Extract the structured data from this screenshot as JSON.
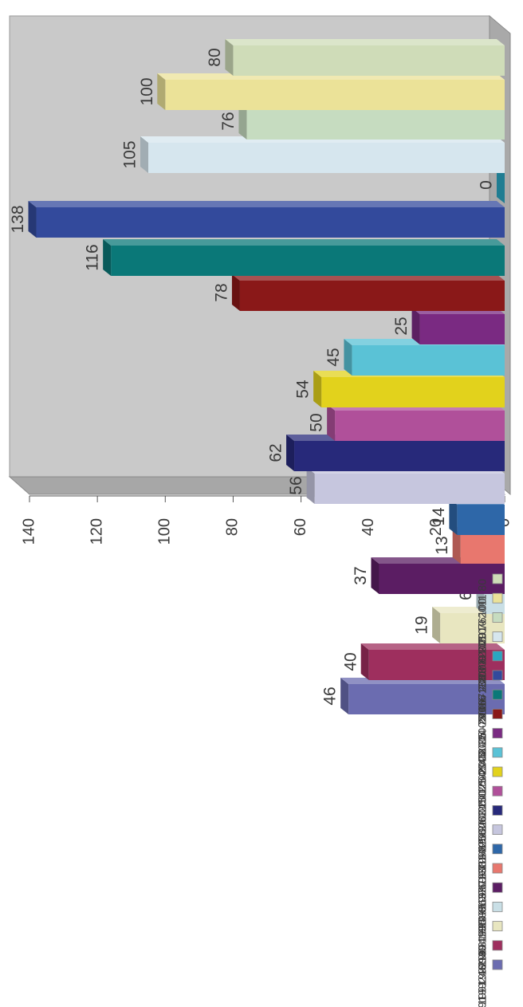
{
  "chart_data": {
    "type": "bar",
    "orientation": "rotated-90",
    "ylim": [
      0,
      140
    ],
    "yticks": [
      0,
      20,
      40,
      60,
      80,
      100,
      120,
      140
    ],
    "grid": false,
    "legend_position": "left",
    "categories": [
      "1990 - 1991",
      "1991 - 1992",
      "1992 - 1993",
      "1993 - 1994",
      "1994 - 1995",
      "1995 - 1996",
      "1996 - 1997",
      "1997 - 1998",
      "1998 - 1999",
      "1999 - 2000",
      "2000 - 2001",
      "2001 - 2002",
      "2002 - 2003",
      "2003 - 2004",
      "2004 - 2005",
      "2005 - 2006",
      "2006 - 2007",
      "2007 - 2008",
      "2008 - 2009",
      "2009 - 2010",
      "2010 - 2011"
    ],
    "values": [
      46,
      40,
      19,
      6,
      37,
      13,
      14,
      56,
      62,
      50,
      54,
      45,
      25,
      78,
      116,
      138,
      0,
      105,
      76,
      100,
      80
    ],
    "legend_labels": [
      "1990 - 1991 46",
      "1991 - 1992 40",
      "1992 - 1993 19",
      "1993 - 1994 6",
      "1994 - 1995 37",
      "1995 - 1996 13",
      "1996 - 1997 14",
      "1997 - 1998 56",
      "1998 - 1999 62",
      "1999 - 2000 50",
      "2000 - 2001 54",
      "2001 - 2002 45",
      "2002 - 2003 25",
      "2003 - 2004 78",
      "2004 - 2005 116",
      "2005 - 2006 138",
      "2006 - 2007 0",
      "2007 - 2008 105",
      "2008 - 2009 76",
      "2009 - 2010 100",
      "2010 - 2011 80"
    ],
    "colors": [
      "#6b6cb0",
      "#9e2f5e",
      "#e8e6c0",
      "#c9dfe6",
      "#5b1d63",
      "#e8776e",
      "#2e67a8",
      "#c6c6de",
      "#27297a",
      "#b0509a",
      "#e2d21c",
      "#5ac2d6",
      "#7a2a82",
      "#8a1818",
      "#0a7878",
      "#334a9c",
      "#2aa6c2",
      "#d6e6ee",
      "#c6dcc0",
      "#ebe298",
      "#cfdcb8"
    ]
  }
}
